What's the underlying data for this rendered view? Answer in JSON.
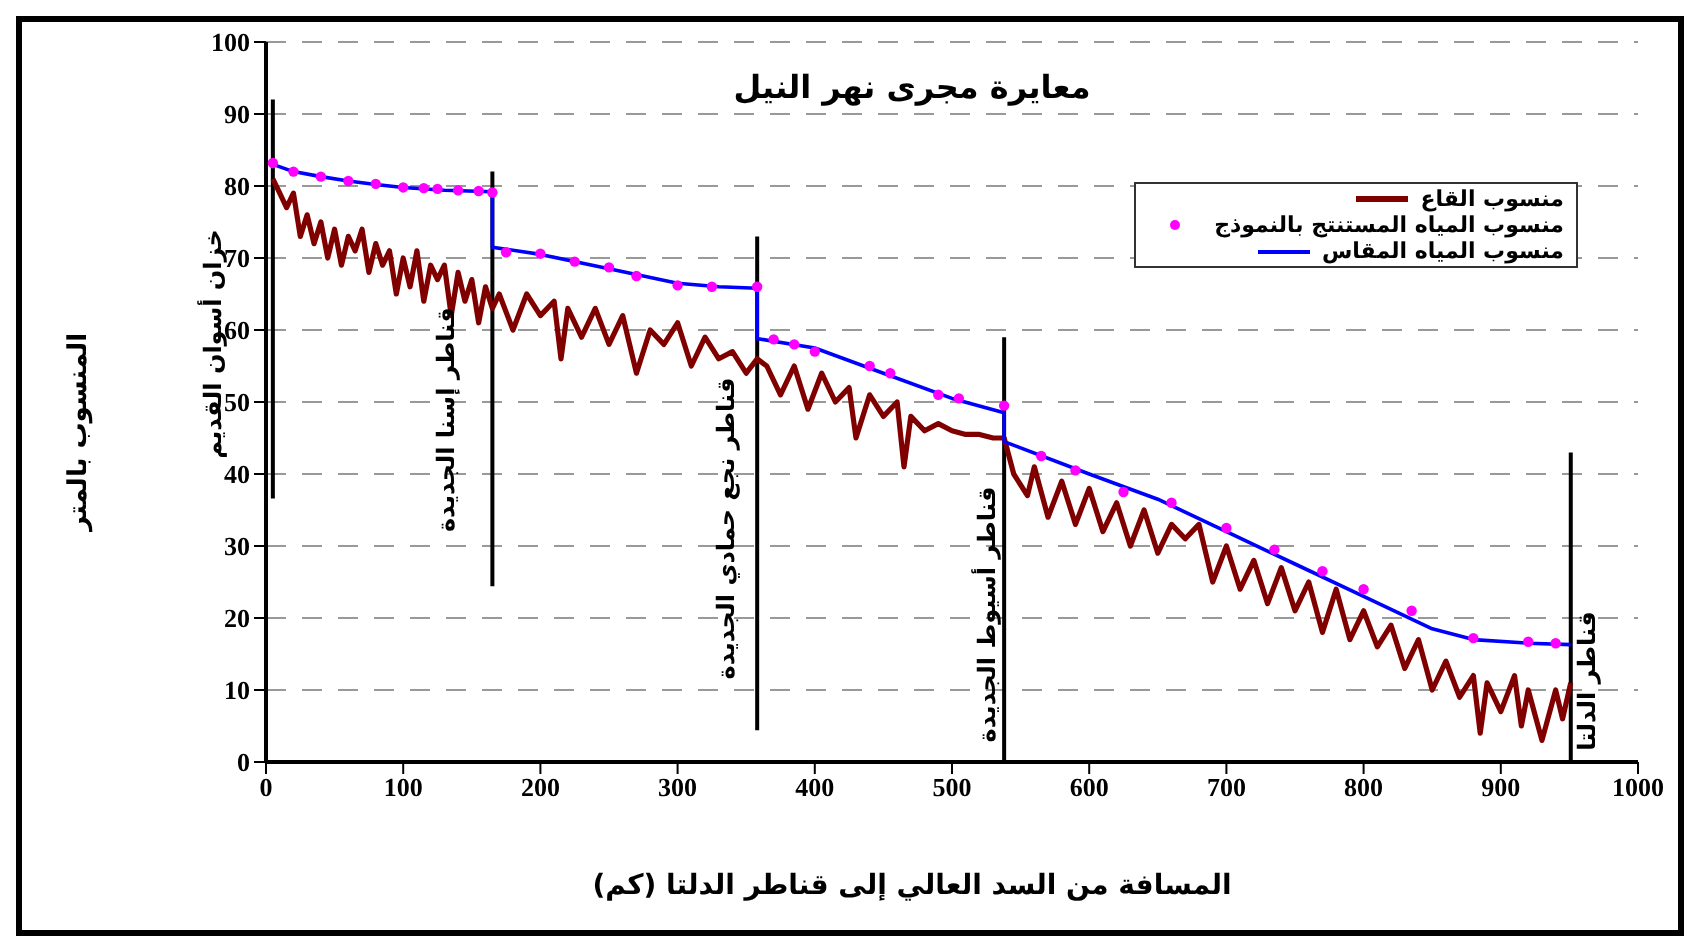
{
  "chart_data": {
    "type": "line",
    "title": "معايرة مجرى نهر النيل",
    "xlabel": "المسافة من السد العالي إلى قناطر الدلتا (كم)",
    "ylabel": "المنسوب بالمتر",
    "xlim": [
      0,
      1000
    ],
    "xticks": [
      0,
      100,
      200,
      300,
      400,
      500,
      600,
      700,
      800,
      900,
      1000
    ],
    "ylim": [
      0,
      100
    ],
    "yticks": [
      0,
      10,
      20,
      30,
      40,
      50,
      60,
      70,
      80,
      90,
      100
    ],
    "grid": "y",
    "legend": "top right",
    "line_style": "solid",
    "series": [
      {
        "name": "منسوب القاع",
        "color": "#800000",
        "x": [
          5,
          10,
          15,
          20,
          25,
          30,
          35,
          40,
          45,
          50,
          55,
          60,
          65,
          70,
          75,
          80,
          85,
          90,
          95,
          100,
          105,
          110,
          115,
          120,
          125,
          130,
          135,
          140,
          145,
          150,
          155,
          160,
          165,
          170,
          180,
          190,
          200,
          210,
          215,
          220,
          230,
          240,
          250,
          260,
          270,
          280,
          290,
          300,
          310,
          320,
          330,
          340,
          350,
          358,
          365,
          375,
          385,
          395,
          405,
          415,
          425,
          430,
          440,
          450,
          460,
          465,
          470,
          480,
          490,
          500,
          510,
          520,
          530,
          538,
          545,
          555,
          560,
          570,
          580,
          590,
          600,
          610,
          620,
          630,
          640,
          650,
          660,
          670,
          680,
          690,
          700,
          710,
          720,
          730,
          740,
          750,
          760,
          770,
          780,
          790,
          800,
          810,
          820,
          830,
          840,
          850,
          860,
          870,
          880,
          885,
          890,
          900,
          910,
          915,
          920,
          930,
          940,
          945,
          951
        ],
        "values": [
          81,
          79,
          77,
          79,
          73,
          76,
          72,
          75,
          70,
          74,
          69,
          73,
          71,
          74,
          68,
          72,
          69,
          71,
          65,
          70,
          66,
          71,
          64,
          69,
          67,
          69,
          62,
          68,
          64,
          67,
          61,
          66,
          63,
          65,
          60,
          65,
          62,
          64,
          56,
          63,
          59,
          63,
          58,
          62,
          54,
          60,
          58,
          61,
          55,
          59,
          56,
          57,
          54,
          56,
          55,
          51,
          55,
          49,
          54,
          50,
          52,
          45,
          51,
          48,
          50,
          41,
          48,
          46,
          47,
          46,
          45.5,
          45.5,
          45,
          45,
          40,
          37,
          41,
          34,
          39,
          33,
          38,
          32,
          36,
          30,
          35,
          29,
          33,
          31,
          33,
          25,
          30,
          24,
          28,
          22,
          27,
          21,
          25,
          18,
          24,
          17,
          21,
          16,
          19,
          13,
          17,
          10,
          14,
          9,
          12,
          4,
          11,
          7,
          12,
          5,
          10,
          3,
          10,
          6,
          11
        ]
      },
      {
        "name": "منسوب المياه المستنتج بالنموذج",
        "color": "#ff00ff",
        "type": "scatter",
        "marker": "circle",
        "x": [
          5,
          20,
          40,
          60,
          80,
          100,
          115,
          125,
          140,
          155,
          165,
          175,
          200,
          225,
          250,
          270,
          300,
          325,
          358,
          370,
          385,
          400,
          440,
          455,
          490,
          505,
          538,
          565,
          590,
          625,
          660,
          700,
          735,
          770,
          800,
          835,
          880,
          920,
          940
        ],
        "values": [
          83.2,
          82,
          81.3,
          80.7,
          80.3,
          79.8,
          79.7,
          79.6,
          79.4,
          79.3,
          79.1,
          70.8,
          70.6,
          69.5,
          68.7,
          67.5,
          66.2,
          66,
          66,
          58.7,
          58,
          57,
          55,
          54,
          51,
          50.5,
          49.5,
          42.5,
          40.5,
          37.5,
          36,
          32.5,
          29.5,
          26.5,
          24,
          21,
          17.2,
          16.7,
          16.5
        ]
      },
      {
        "name": "منسوب المياه المقاس",
        "color": "#0000ff",
        "x": [
          5,
          20,
          40,
          60,
          80,
          100,
          130,
          165,
          165,
          200,
          250,
          300,
          330,
          358,
          358,
          400,
          450,
          500,
          538,
          538,
          600,
          650,
          700,
          750,
          800,
          850,
          880,
          920,
          951
        ],
        "values": [
          83,
          82,
          81.3,
          80.7,
          80.2,
          79.8,
          79.4,
          79.2,
          71.5,
          70.5,
          68.5,
          66.5,
          66,
          65.8,
          58.8,
          57.5,
          54,
          50.5,
          48.5,
          44.5,
          40,
          36.5,
          32,
          27.5,
          23,
          18.5,
          17,
          16.5,
          16.3
        ]
      }
    ],
    "ref_lines": [
      {
        "axis": "x",
        "value": 5,
        "color": "#000000"
      },
      {
        "axis": "x",
        "value": 165,
        "color": "#000000"
      },
      {
        "axis": "x",
        "value": 358,
        "color": "#000000"
      },
      {
        "axis": "x",
        "value": 538,
        "color": "#000000"
      },
      {
        "axis": "x",
        "value": 951,
        "color": "#000000"
      }
    ],
    "annotations": [
      {
        "text": "خزان أسوان القديم",
        "x": 5,
        "y": 76
      },
      {
        "text": "قناطر إسنا الجديدة",
        "x": 165,
        "y": 66
      },
      {
        "text": "قناطر نجع حمادي الجديدة",
        "x": 358,
        "y": 57
      },
      {
        "text": "قناطر أسيوط الجديدة",
        "x": 538,
        "y": 43
      },
      {
        "text": "قناطر الدلتا",
        "x": 951,
        "y": 27
      }
    ]
  }
}
